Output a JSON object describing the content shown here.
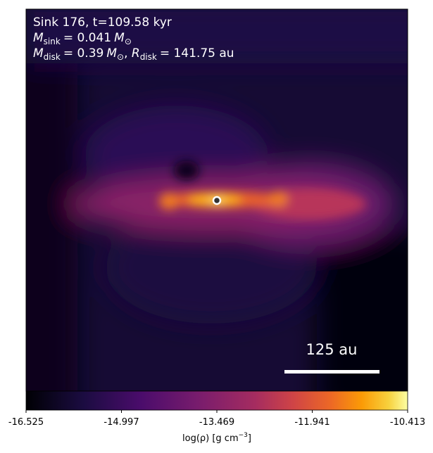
{
  "annotation": {
    "title": "Sink 176, t=109.58 kyr",
    "sink_mass": [
      "M",
      "sink",
      "= 0.041",
      "M",
      "⊙"
    ],
    "disk": [
      "M",
      "disk",
      "= 0.39",
      "M",
      "⊙",
      ", ",
      "R",
      "disk",
      "= 141.75 au"
    ]
  },
  "scale_bar": {
    "label": "125 au"
  },
  "colorbar": {
    "ticks": [
      "-16.525",
      "-14.997",
      "-13.469",
      "-11.941",
      "-10.413"
    ],
    "label": [
      "log(ρ) [g cm",
      "−3",
      "]"
    ]
  }
}
